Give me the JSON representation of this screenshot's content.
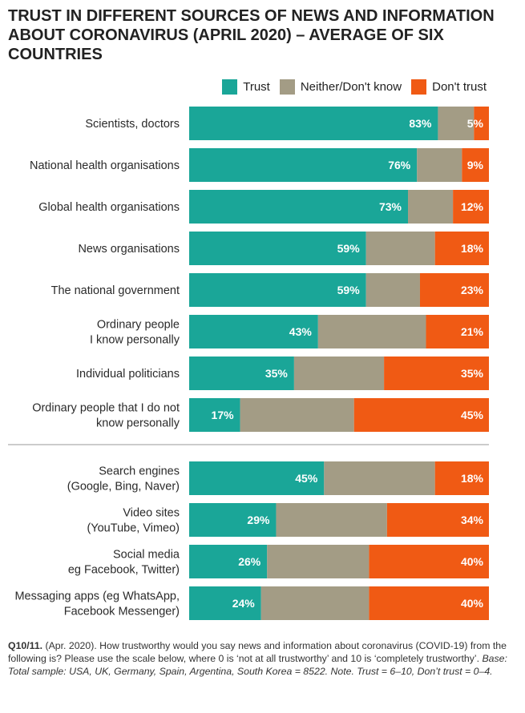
{
  "title": {
    "lines": [
      "TRUST IN DIFFERENT SOURCES OF NEWS AND INFORMATION",
      "ABOUT CORONAVIRUS (APRIL 2020) – AVERAGE OF SIX",
      "COUNTRIES"
    ]
  },
  "colors": {
    "trust": "#1aa698",
    "neither": "#a39c85",
    "dont_trust": "#f05a14",
    "label_text": "#2a2a2a",
    "separator": "#999999"
  },
  "chart_data": {
    "type": "bar",
    "orientation": "horizontal",
    "stacked": true,
    "legend_position": "top-right",
    "series": [
      {
        "key": "trust",
        "name": "Trust"
      },
      {
        "key": "neither",
        "name": "Neither/Don't know"
      },
      {
        "key": "dont_trust",
        "name": "Don't trust"
      }
    ],
    "groups": [
      {
        "rows": [
          {
            "label": [
              "Scientists, doctors"
            ],
            "trust": 83,
            "dont_trust": 5
          },
          {
            "label": [
              "National health organisations"
            ],
            "trust": 76,
            "dont_trust": 9
          },
          {
            "label": [
              "Global health organisations"
            ],
            "trust": 73,
            "dont_trust": 12
          },
          {
            "label": [
              "News organisations"
            ],
            "trust": 59,
            "dont_trust": 18
          },
          {
            "label": [
              "The national government"
            ],
            "trust": 59,
            "dont_trust": 23
          },
          {
            "label": [
              "Ordinary people",
              "I know personally"
            ],
            "trust": 43,
            "dont_trust": 21
          },
          {
            "label": [
              "Individual politicians"
            ],
            "trust": 35,
            "dont_trust": 35
          },
          {
            "label": [
              "Ordinary people that I do not",
              "know personally"
            ],
            "trust": 17,
            "dont_trust": 45
          }
        ]
      },
      {
        "rows": [
          {
            "label": [
              "Search engines",
              "(Google, Bing, Naver)"
            ],
            "trust": 45,
            "dont_trust": 18
          },
          {
            "label": [
              "Video sites",
              "(YouTube, Vimeo)"
            ],
            "trust": 29,
            "dont_trust": 34
          },
          {
            "label": [
              "Social media",
              "eg Facebook, Twitter)"
            ],
            "trust": 26,
            "dont_trust": 40
          },
          {
            "label": [
              "Messaging apps (eg WhatsApp,",
              "Facebook Messenger)"
            ],
            "trust": 24,
            "dont_trust": 40
          }
        ]
      }
    ],
    "value_suffix": "%",
    "xlim": [
      0,
      100
    ]
  },
  "footnote": {
    "q_label": "Q10/11.",
    "q_text": " (Apr. 2020). How trustworthy would you say news and information about coronavirus (COVID-19) from the following is? Please use the scale below, where 0 is ‘not at all trustworthy’ and 10 is ‘completely trustworthy’.",
    "base_text": " Base: Total sample: USA, UK, Germany, Spain, Argentina, South Korea = 8522. Note. Trust = 6–10, Don’t trust = 0–4."
  }
}
